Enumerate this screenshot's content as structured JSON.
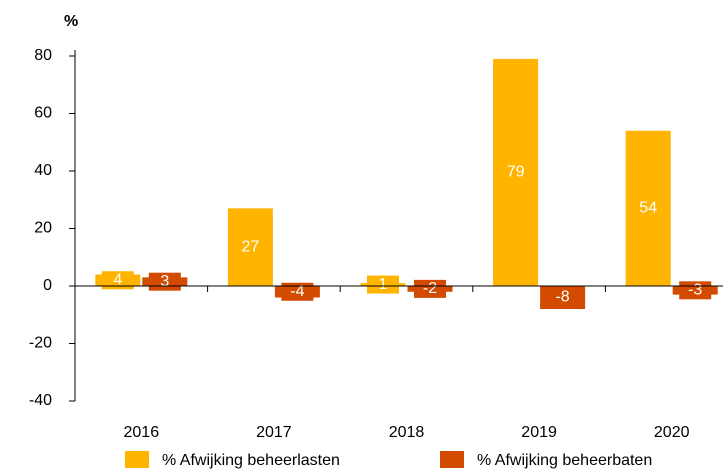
{
  "chart_data": {
    "type": "bar",
    "y_label": "%",
    "categories": [
      "2016",
      "2017",
      "2018",
      "2019",
      "2020"
    ],
    "series": [
      {
        "name": "% Afwijking beheerlasten",
        "color": "#ffb400",
        "values": [
          4,
          27,
          1,
          79,
          54
        ]
      },
      {
        "name": "% Afwijking beheerbaten",
        "color": "#d24b00",
        "values": [
          3,
          -4,
          -2,
          -8,
          -3
        ]
      }
    ],
    "ylim": [
      -40,
      80
    ],
    "yticks": [
      -40,
      -20,
      0,
      20,
      40,
      60,
      80
    ],
    "legend": "bottom"
  }
}
